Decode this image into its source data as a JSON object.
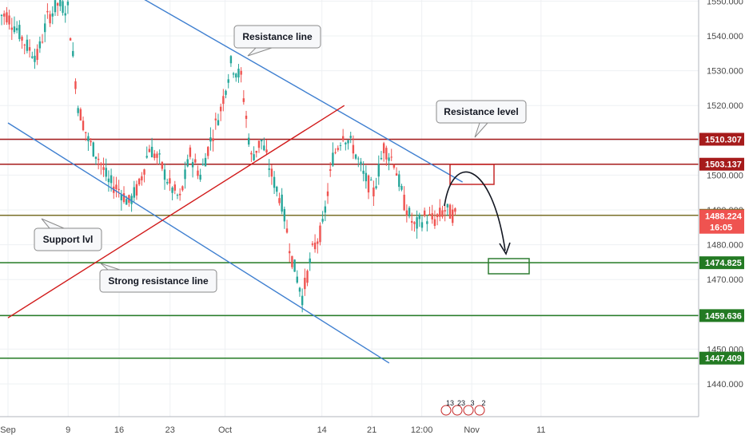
{
  "chart_data": {
    "type": "candlestick",
    "y_ticks": [
      1440,
      1450,
      1460,
      1470,
      1480,
      1490,
      1500,
      1510,
      1520,
      1530,
      1540,
      1550
    ],
    "y_tick_labels": [
      "1440.000",
      "1450.000",
      "1460.000",
      "1470.000",
      "1480.000",
      "1490.000",
      "1500.000",
      "1510.000",
      "1520.000",
      "1530.000",
      "1540.000",
      "1550.000"
    ],
    "x_ticks": [
      {
        "label": "Sep",
        "i": 0
      },
      {
        "label": "9",
        "i": 5.9
      },
      {
        "label": "16",
        "i": 10.9
      },
      {
        "label": "23",
        "i": 15.9
      },
      {
        "label": "Oct",
        "i": 21.3
      },
      {
        "label": "14",
        "i": 30.8
      },
      {
        "label": "21",
        "i": 35.7
      },
      {
        "label": "12:00",
        "i": 40.6
      },
      {
        "label": "Nov",
        "i": 45.5
      },
      {
        "label": "11",
        "i": 52.3
      }
    ],
    "closes": [
      1546,
      1542,
      1537,
      1534,
      1545,
      1549,
      1548,
      1520,
      1510,
      1505,
      1498,
      1496,
      1492,
      1497,
      1508,
      1504,
      1497,
      1493,
      1506,
      1500,
      1510,
      1519,
      1532,
      1528,
      1505,
      1510,
      1500,
      1492,
      1476,
      1465,
      1478,
      1485,
      1505,
      1512,
      1508,
      1500,
      1495,
      1508,
      1504,
      1492,
      1485,
      1488,
      1487,
      1490,
      1488.2
    ],
    "levels": [
      {
        "value": 1510.307,
        "label": "1510.307",
        "color": "#a61b1b"
      },
      {
        "value": 1503.137,
        "label": "1503.137",
        "color": "#a61b1b"
      },
      {
        "value": 1488.449,
        "label": "1488.449",
        "color": "#7a6f28"
      },
      {
        "value": 1474.825,
        "label": "1474.825",
        "color": "#237a23"
      },
      {
        "value": 1459.636,
        "label": "1459.636",
        "color": "#237a23"
      },
      {
        "value": 1447.409,
        "label": "1447.409",
        "color": "#237a23"
      }
    ],
    "last_price": {
      "value": 1488.224,
      "label": "1488.224",
      "countdown": "16:05",
      "color": "#ef5350"
    },
    "trendlines": [
      {
        "name": "resistance-line",
        "color": "#3e7fd0",
        "from": {
          "i": 9.5,
          "y": 1557
        },
        "to": {
          "i": 44.6,
          "y": 1498
        }
      },
      {
        "name": "strong-resistance-line",
        "color": "#3e7fd0",
        "from": {
          "i": 0,
          "y": 1515
        },
        "to": {
          "i": 37.4,
          "y": 1446
        }
      },
      {
        "name": "support-trendline",
        "color": "#d11a1a",
        "from": {
          "i": 0,
          "y": 1459
        },
        "to": {
          "i": 33,
          "y": 1520
        }
      }
    ],
    "annotations": [
      {
        "text": "Resistance line"
      },
      {
        "text": "Resistance level"
      },
      {
        "text": "Support lvl"
      },
      {
        "text": "Strong resistance line"
      }
    ],
    "events": [
      "13",
      "23",
      "3",
      "2"
    ]
  }
}
